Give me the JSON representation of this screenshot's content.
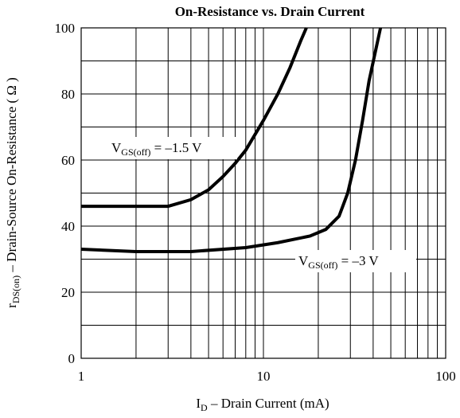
{
  "chart_data": {
    "type": "line",
    "title": "On-Resistance vs. Drain Current",
    "x_label": {
      "main": "I",
      "sub": "D",
      "rest": " – Drain Current (mA)"
    },
    "y_label": {
      "main": "r",
      "sub": "DS(on)",
      "rest": " – Drain-Source On-Resistance ( Ω )"
    },
    "xscale": "log",
    "xlim": [
      1,
      100
    ],
    "xticks": [
      1,
      10,
      100
    ],
    "x_minor_ticks": [
      2,
      3,
      4,
      5,
      6,
      7,
      8,
      9,
      20,
      30,
      40,
      50,
      60,
      70,
      80,
      90
    ],
    "ylim": [
      0,
      100
    ],
    "yticks": [
      0,
      20,
      40,
      60,
      80,
      100
    ],
    "y_minor_ticks": [
      10,
      30,
      50,
      70,
      90
    ],
    "grid": true,
    "series": [
      {
        "color": "#000000",
        "x": [
          1,
          2,
          3,
          4,
          5,
          6,
          7,
          8,
          10,
          12,
          14,
          16,
          17.2
        ],
        "values": [
          46,
          46,
          46,
          48,
          51,
          55,
          59,
          63,
          72,
          80,
          88,
          96,
          100
        ],
        "annotation": {
          "main": "V",
          "sub": "GS(off)",
          "rest": " = –1.5 V"
        }
      },
      {
        "color": "#000000",
        "x": [
          1,
          2,
          4,
          8,
          12,
          18,
          22,
          26,
          29,
          32,
          35,
          38,
          43.9
        ],
        "values": [
          33,
          32.3,
          32.3,
          33.5,
          35,
          37,
          39,
          43,
          50,
          60,
          72,
          84,
          100
        ],
        "annotation": {
          "main": "V",
          "sub": "GS(off)",
          "rest": " = –3 V"
        }
      }
    ]
  }
}
